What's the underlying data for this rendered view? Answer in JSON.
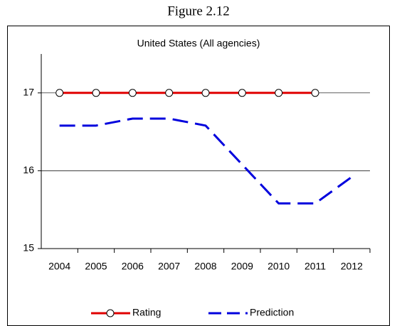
{
  "figure_label": "Figure 2.12",
  "chart_data": {
    "type": "line",
    "title": "United States (All agencies)",
    "categories": [
      "2004",
      "2005",
      "2006",
      "2007",
      "2008",
      "2009",
      "2010",
      "2011",
      "2012"
    ],
    "series": [
      {
        "name": "Rating",
        "color": "#e00000",
        "values": [
          17,
          17,
          17,
          17,
          17,
          17,
          17,
          17,
          null
        ]
      },
      {
        "name": "Prediction",
        "color": "#0000dd",
        "values": [
          16.58,
          16.58,
          16.67,
          16.67,
          16.58,
          16.08,
          15.58,
          15.58,
          15.92
        ]
      }
    ],
    "ylim": [
      15,
      17.5
    ],
    "yticks": [
      15,
      16,
      17
    ],
    "grid": true,
    "legend": "bottom"
  }
}
